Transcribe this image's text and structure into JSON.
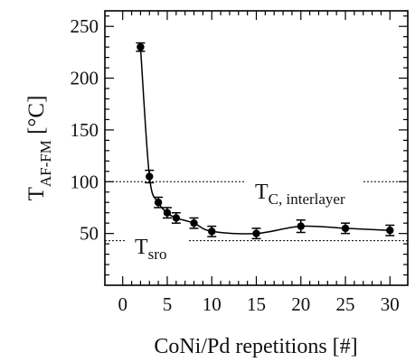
{
  "chart_data": {
    "type": "scatter",
    "xlabel": "CoNi/Pd repetitions [#]",
    "ylabel": {
      "main": "T",
      "sub": "AF-FM",
      "unit": " [°C]"
    },
    "xlim": [
      -2,
      32
    ],
    "ylim": [
      0,
      265
    ],
    "xticks": [
      0,
      5,
      10,
      15,
      20,
      25,
      30
    ],
    "yticks": [
      50,
      100,
      150,
      200,
      250
    ],
    "grid": false,
    "series": [
      {
        "x": [
          2,
          3,
          4,
          5,
          6,
          8,
          10,
          15,
          20,
          25,
          30
        ],
        "y": [
          230,
          105,
          80,
          70,
          65,
          60,
          52,
          50,
          57,
          55,
          53
        ],
        "err": [
          4,
          6,
          5,
          5,
          5,
          5,
          5,
          5,
          6,
          5,
          5
        ],
        "marker": "filled-circle",
        "color": "#000000"
      }
    ],
    "fit_curve": {
      "style": "solid",
      "color": "#000000"
    },
    "reference_lines": [
      {
        "y": 100,
        "style": "dotted",
        "label_main": "T",
        "label_sub": "C, interlayer"
      },
      {
        "y": 43,
        "style": "dotted",
        "label_main": "T",
        "label_sub": "sro"
      }
    ]
  }
}
